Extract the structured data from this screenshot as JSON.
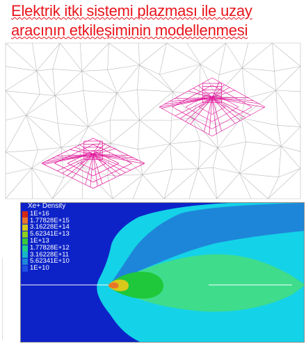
{
  "slide": {
    "title_line1": "Elektrik itki sistemi plazması ile uzay",
    "title_line2": "aracının etkileşiminin modellenmesi"
  },
  "density_plot": {
    "legend_title": "Xe+ Density",
    "legend": [
      {
        "label": "1E+16",
        "color": "#d42a14"
      },
      {
        "label": "1.77828E+15",
        "color": "#e8762a"
      },
      {
        "label": "3.16228E+14",
        "color": "#d6c91a"
      },
      {
        "label": "5.62341E+13",
        "color": "#8ecf1e"
      },
      {
        "label": "1E+13",
        "color": "#3ac83a"
      },
      {
        "label": "1.77828E+12",
        "color": "#1fd08a"
      },
      {
        "label": "3.16228E+11",
        "color": "#19b6c6"
      },
      {
        "label": "5.62341E+10",
        "color": "#1e86d8"
      },
      {
        "label": "1E+10",
        "color": "#1e4fe0"
      }
    ],
    "colors": {
      "background_blue": "#0d23c8",
      "outer_cyan": "#14d2e8",
      "mid_blue": "#1e74dc",
      "plume_green": "#3fdc8c",
      "core_green": "#1ec83a"
    }
  },
  "mesh": {
    "colors": {
      "grid": "#b8b8b8",
      "component": "#e0199a"
    }
  }
}
